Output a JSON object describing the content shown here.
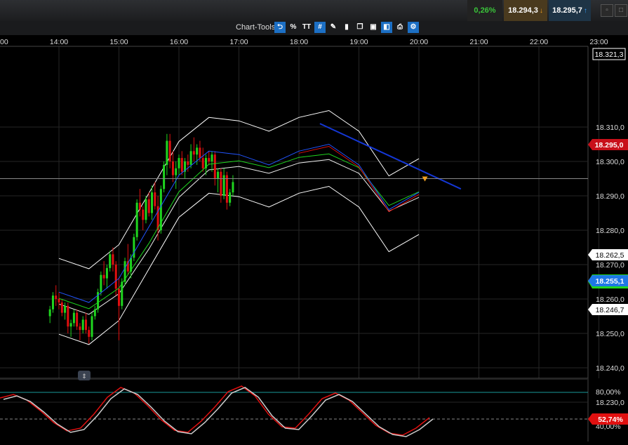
{
  "quotes": {
    "change": "0,26%",
    "bid": "18.294,3",
    "ask": "18.295,7",
    "bid_arrow": "↓",
    "ask_arrow": "↑"
  },
  "toolbar": {
    "label": "Chart-Tools",
    "percent": "%",
    "text_tool": "TT"
  },
  "time_axis": [
    "00",
    "14:00",
    "15:00",
    "16:00",
    "17:00",
    "18:00",
    "19:00",
    "20:00",
    "21:00",
    "22:00",
    "23:00"
  ],
  "price_axis": [
    "18.310,0",
    "18.300,0",
    "18.290,0",
    "18.280,0",
    "18.270,0",
    "18.260,0",
    "18.250,0",
    "18.240,0",
    "18.230,0"
  ],
  "price_tags": {
    "top": "18.321,3",
    "current": "18.295,0",
    "upper_band": "18.262,5",
    "mid_band": "18.255,1",
    "lower_band": "18.246,7"
  },
  "oscillator": {
    "labels": [
      "80,00%",
      "40,00%"
    ],
    "current": "52,74%"
  },
  "colors": {
    "up": "#1fd61f",
    "down": "#e01010",
    "blue_line": "#1437d6",
    "band": "#ffffff",
    "current_tag": "#c8101a",
    "mid_tag": "#1e78e6"
  },
  "chart_data": {
    "type": "candlestick",
    "x_unit": "time of day",
    "ylim": [
      18225,
      18322
    ],
    "candles": [
      [
        13.85,
        18255,
        18258,
        18253,
        18257
      ],
      [
        13.9,
        18257,
        18262,
        18256,
        18261
      ],
      [
        13.95,
        18261,
        18264,
        18258,
        18260
      ],
      [
        14.0,
        18260,
        18262,
        18257,
        18259
      ],
      [
        14.05,
        18259,
        18260,
        18255,
        18256
      ],
      [
        14.1,
        18256,
        18259,
        18254,
        18258
      ],
      [
        14.15,
        18258,
        18259,
        18250,
        18252
      ],
      [
        14.2,
        18252,
        18254,
        18249,
        18253
      ],
      [
        14.25,
        18253,
        18257,
        18252,
        18256
      ],
      [
        14.3,
        18256,
        18257,
        18251,
        18252
      ],
      [
        14.35,
        18252,
        18253,
        18248,
        18251
      ],
      [
        14.4,
        18251,
        18255,
        18250,
        18254
      ],
      [
        14.45,
        18254,
        18256,
        18250,
        18251
      ],
      [
        14.5,
        18251,
        18252,
        18247,
        18249
      ],
      [
        14.55,
        18249,
        18256,
        18248,
        18255
      ],
      [
        14.6,
        18255,
        18258,
        18254,
        18257
      ],
      [
        14.65,
        18257,
        18263,
        18256,
        18262
      ],
      [
        14.7,
        18262,
        18268,
        18261,
        18267
      ],
      [
        14.75,
        18267,
        18271,
        18264,
        18266
      ],
      [
        14.8,
        18266,
        18270,
        18263,
        18269
      ],
      [
        14.85,
        18269,
        18274,
        18268,
        18273
      ],
      [
        14.9,
        18273,
        18275,
        18268,
        18270
      ],
      [
        14.95,
        18270,
        18271,
        18261,
        18263
      ],
      [
        15.0,
        18263,
        18266,
        18248,
        18258
      ],
      [
        15.05,
        18258,
        18266,
        18257,
        18265
      ],
      [
        15.1,
        18265,
        18272,
        18264,
        18271
      ],
      [
        15.15,
        18271,
        18276,
        18267,
        18268
      ],
      [
        15.2,
        18268,
        18273,
        18266,
        18272
      ],
      [
        15.25,
        18272,
        18279,
        18271,
        18278
      ],
      [
        15.3,
        18278,
        18289,
        18277,
        18288
      ],
      [
        15.35,
        18288,
        18292,
        18284,
        18286
      ],
      [
        15.4,
        18286,
        18287,
        18280,
        18283
      ],
      [
        15.45,
        18283,
        18290,
        18282,
        18289
      ],
      [
        15.5,
        18289,
        18291,
        18284,
        18285
      ],
      [
        15.55,
        18285,
        18293,
        18283,
        18291
      ],
      [
        15.6,
        18291,
        18294,
        18286,
        18287
      ],
      [
        15.65,
        18287,
        18290,
        18277,
        18280
      ],
      [
        15.7,
        18280,
        18293,
        18279,
        18292
      ],
      [
        15.75,
        18292,
        18300,
        18291,
        18299
      ],
      [
        15.8,
        18299,
        18308,
        18296,
        18306
      ],
      [
        15.85,
        18306,
        18308,
        18298,
        18300
      ],
      [
        15.9,
        18300,
        18303,
        18294,
        18296
      ],
      [
        15.95,
        18296,
        18300,
        18292,
        18298
      ],
      [
        16.0,
        18298,
        18302,
        18296,
        18301
      ],
      [
        16.05,
        18301,
        18303,
        18296,
        18297
      ],
      [
        16.1,
        18297,
        18301,
        18295,
        18300
      ],
      [
        16.15,
        18300,
        18302,
        18297,
        18299
      ],
      [
        16.2,
        18299,
        18305,
        18298,
        18303
      ],
      [
        16.25,
        18303,
        18307,
        18300,
        18302
      ],
      [
        16.3,
        18302,
        18305,
        18299,
        18304
      ],
      [
        16.35,
        18304,
        18306,
        18300,
        18301
      ],
      [
        16.4,
        18301,
        18304,
        18297,
        18298
      ],
      [
        16.45,
        18298,
        18302,
        18296,
        18301
      ],
      [
        16.5,
        18301,
        18303,
        18299,
        18300
      ],
      [
        16.55,
        18300,
        18303,
        18297,
        18302
      ],
      [
        16.6,
        18302,
        18303,
        18293,
        18295
      ],
      [
        16.65,
        18295,
        18298,
        18291,
        18297
      ],
      [
        16.7,
        18297,
        18298,
        18288,
        18290
      ],
      [
        16.75,
        18290,
        18298,
        18289,
        18296
      ],
      [
        16.8,
        18296,
        18297,
        18286,
        18288
      ],
      [
        16.85,
        18288,
        18292,
        18287,
        18291
      ],
      [
        16.9,
        18291,
        18296,
        18290,
        18294
      ]
    ],
    "series": [
      {
        "name": "",
        "x": [
          14.0,
          14.5,
          15.0,
          15.5,
          16.0,
          16.5,
          17.0,
          17.5,
          18.0,
          18.5,
          19.0,
          19.5,
          20.0
        ],
        "values": [
          18262,
          18259,
          18266,
          18281,
          18296,
          18303,
          18302,
          18299,
          18303,
          18305,
          18299,
          18286,
          18291
        ]
      },
      {
        "name": "",
        "x": [
          14.0,
          14.5,
          15.0,
          15.5,
          16.0,
          16.5,
          17.0,
          17.5,
          18.0,
          18.5,
          19.0,
          19.5,
          20.0
        ],
        "values": [
          18261,
          18258,
          18264,
          18277,
          18292,
          18300,
          18301,
          18299,
          18302,
          18303,
          18299,
          18288,
          18292
        ]
      },
      {
        "name": "",
        "x": [
          18.35,
          20.7
        ],
        "values": [
          18311,
          18292
        ]
      }
    ]
  }
}
